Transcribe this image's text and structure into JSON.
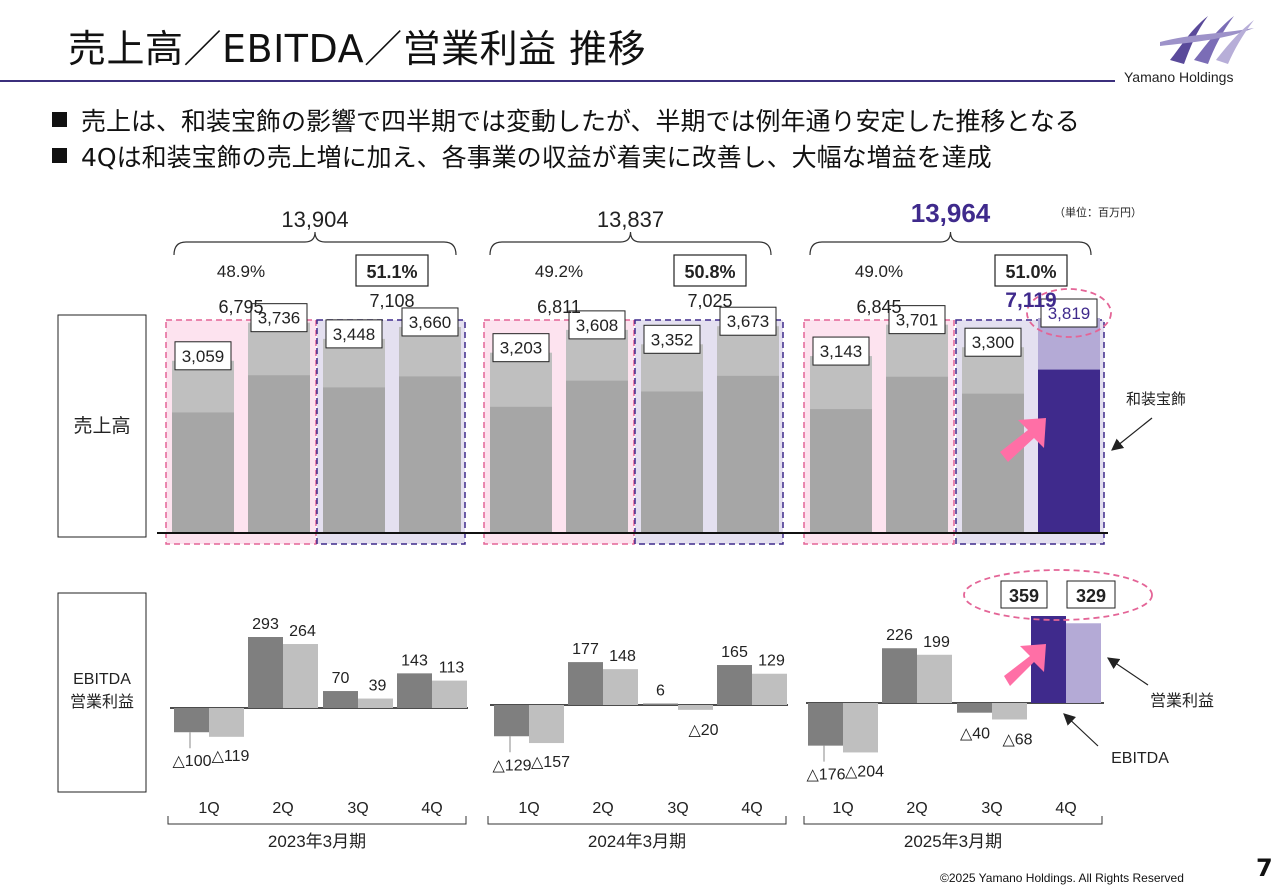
{
  "title": "売上高／EBITDA／営業利益 推移",
  "brand": {
    "name": "Yamano Holdings"
  },
  "bullets": [
    "売上は、和装宝飾の影響で四半期では変動したが、半期では例年通り安定した推移となる",
    "4Qは和装宝飾の売上増に加え、各事業の収益が着実に改善し、大幅な増益を達成"
  ],
  "unit": "（単位：百万円）",
  "page_number": "7",
  "copyright": "©2025 Yamano Holdings. All Rights Reserved",
  "colors": {
    "accent": "#3f2a8c",
    "pink": "#ff6fa6",
    "gray_dark": "#7f7f7f",
    "gray_light": "#bfbfbf",
    "gray_mid": "#a6a6a6",
    "lavender": "#b4aad6"
  },
  "chart_data": [
    {
      "type": "bar",
      "title": "売上高",
      "categories": [
        "1Q",
        "2Q",
        "3Q",
        "4Q"
      ],
      "periods": [
        "2023年3月期",
        "2024年3月期",
        "2025年3月期"
      ],
      "series": [
        {
          "name": "2023年3月期",
          "values": [
            3059,
            3736,
            3448,
            3660
          ],
          "labels": [
            "3,059",
            "3,736",
            "3,448",
            "3,660"
          ]
        },
        {
          "name": "2024年3月期",
          "values": [
            3203,
            3608,
            3352,
            3673
          ],
          "labels": [
            "3,203",
            "3,608",
            "3,352",
            "3,673"
          ]
        },
        {
          "name": "2025年3月期",
          "values": [
            3143,
            3701,
            3300,
            3819
          ],
          "labels": [
            "3,143",
            "3,701",
            "3,300",
            "3,819"
          ]
        }
      ],
      "annual_totals": [
        "13,904",
        "13,837",
        "13,964"
      ],
      "half_totals": [
        [
          "6,795",
          "7,108"
        ],
        [
          "6,811",
          "7,025"
        ],
        [
          "6,845",
          "7,119"
        ]
      ],
      "half_shares": [
        [
          "48.9%",
          "51.1%"
        ],
        [
          "49.2%",
          "50.8%"
        ],
        [
          "49.0%",
          "51.0%"
        ]
      ],
      "annotation": "和装宝飾"
    },
    {
      "type": "bar",
      "title": "EBITDA 営業利益",
      "row_label_1": "EBITDA",
      "row_label_2": "営業利益",
      "categories": [
        "1Q",
        "2Q",
        "3Q",
        "4Q"
      ],
      "periods": [
        "2023年3月期",
        "2024年3月期",
        "2025年3月期"
      ],
      "series_names": [
        "EBITDA",
        "営業利益"
      ],
      "data": [
        {
          "ebitda": [
            -100,
            293,
            70,
            143
          ],
          "op": [
            -119,
            264,
            39,
            113
          ],
          "ebitda_labels": [
            "△100",
            "293",
            "70",
            "143"
          ],
          "op_labels": [
            "△119",
            "264",
            "39",
            "113"
          ]
        },
        {
          "ebitda": [
            -129,
            177,
            6,
            165
          ],
          "op": [
            -157,
            148,
            -20,
            129
          ],
          "ebitda_labels": [
            "△129",
            "177",
            "6",
            "165"
          ],
          "op_labels": [
            "△157",
            "148",
            "△20",
            "129"
          ]
        },
        {
          "ebitda": [
            -176,
            226,
            -40,
            359
          ],
          "op": [
            -204,
            199,
            -68,
            329
          ],
          "ebitda_labels": [
            "△176",
            "226",
            "△40",
            "359"
          ],
          "op_labels": [
            "△204",
            "199",
            "△68",
            "329"
          ]
        }
      ]
    }
  ]
}
